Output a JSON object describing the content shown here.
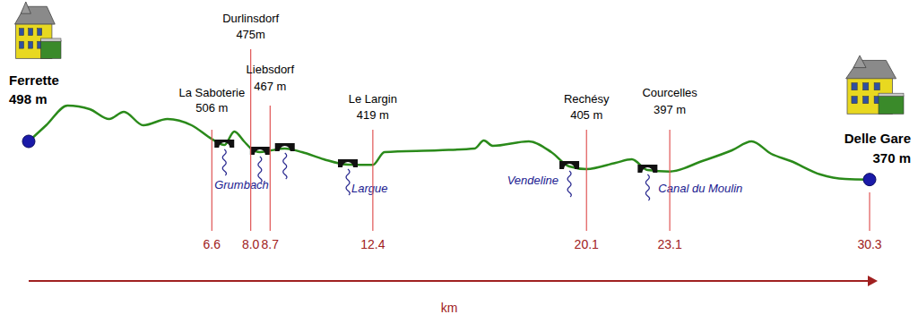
{
  "chart_data": {
    "type": "line",
    "x_label": "km",
    "color": "#2a8a1a",
    "x": [
      0,
      0.63,
      1.4,
      2.2,
      2.9,
      3.43,
      4.13,
      5.0,
      5.87,
      6.6,
      7.05,
      7.41,
      7.76,
      8,
      8.33,
      8.7,
      9.23,
      9.85,
      10.63,
      11.5,
      12.4,
      12.82,
      14.77,
      16.07,
      16.4,
      16.72,
      18.02,
      18.83,
      19.48,
      20.1,
      21.15,
      21.73,
      22.3,
      23.1,
      24.27,
      25.34,
      26.05,
      26.76,
      27.46,
      28.53,
      29.41,
      30.3
    ],
    "values": [
      498,
      552,
      618,
      606,
      573,
      597,
      552,
      573,
      552,
      506,
      486,
      531,
      498,
      475,
      462,
      467,
      474,
      462,
      438,
      420,
      419,
      462,
      468,
      474,
      501,
      483,
      498,
      462,
      414,
      405,
      426,
      438,
      402,
      397,
      432,
      468,
      498,
      456,
      432,
      387,
      372,
      370
    ],
    "xlim": [
      0,
      30.3
    ],
    "xticks": [
      6.6,
      {
        "value": 8,
        "label": "8.0"
      },
      8.7,
      12.4,
      20.1,
      23.1,
      30.3
    ],
    "ylim": [
      30,
      900
    ],
    "tick_labels": "x",
    "places": [
      {
        "name": "Ferrette",
        "km": 0,
        "elevation": {
          "value": 498,
          "label": "498 m"
        }
      },
      {
        "name": "La Saboterie",
        "km": 6.6,
        "elevation": {
          "value": 506,
          "label": "506 m"
        }
      },
      {
        "name": "Durlinsdorf",
        "km": 8,
        "elevation": {
          "value": 475,
          "label": "475m"
        }
      },
      {
        "name": "Liebsdorf",
        "km": 8.7,
        "elevation": {
          "value": 467,
          "label": "467 m"
        }
      },
      {
        "name": "Le Largin",
        "km": 12.4,
        "elevation": {
          "value": 419,
          "label": "419 m"
        }
      },
      {
        "name": "Rechésy",
        "km": 20.1,
        "elevation": {
          "value": 405,
          "label": "405 m"
        }
      },
      {
        "name": "Courcelles",
        "km": 23.1,
        "elevation": {
          "value": 397,
          "label": "397 m"
        }
      },
      {
        "name": "Delle Gare",
        "km": 30.3,
        "elevation": {
          "value": 370,
          "label": "370 m"
        }
      }
    ],
    "bridges": [
      {
        "km": 7.05,
        "elevation": 486
      },
      {
        "km": 8.33,
        "elevation": 462,
        "river": "Grumbach"
      },
      {
        "km": 9.23,
        "elevation": 474
      },
      {
        "km": 11.5,
        "elevation": 420,
        "river": "Largue"
      },
      {
        "km": 19.48,
        "elevation": 414,
        "river": "Vendeline"
      },
      {
        "km": 22.3,
        "elevation": 402,
        "river": "Canal du Moulin"
      }
    ]
  }
}
